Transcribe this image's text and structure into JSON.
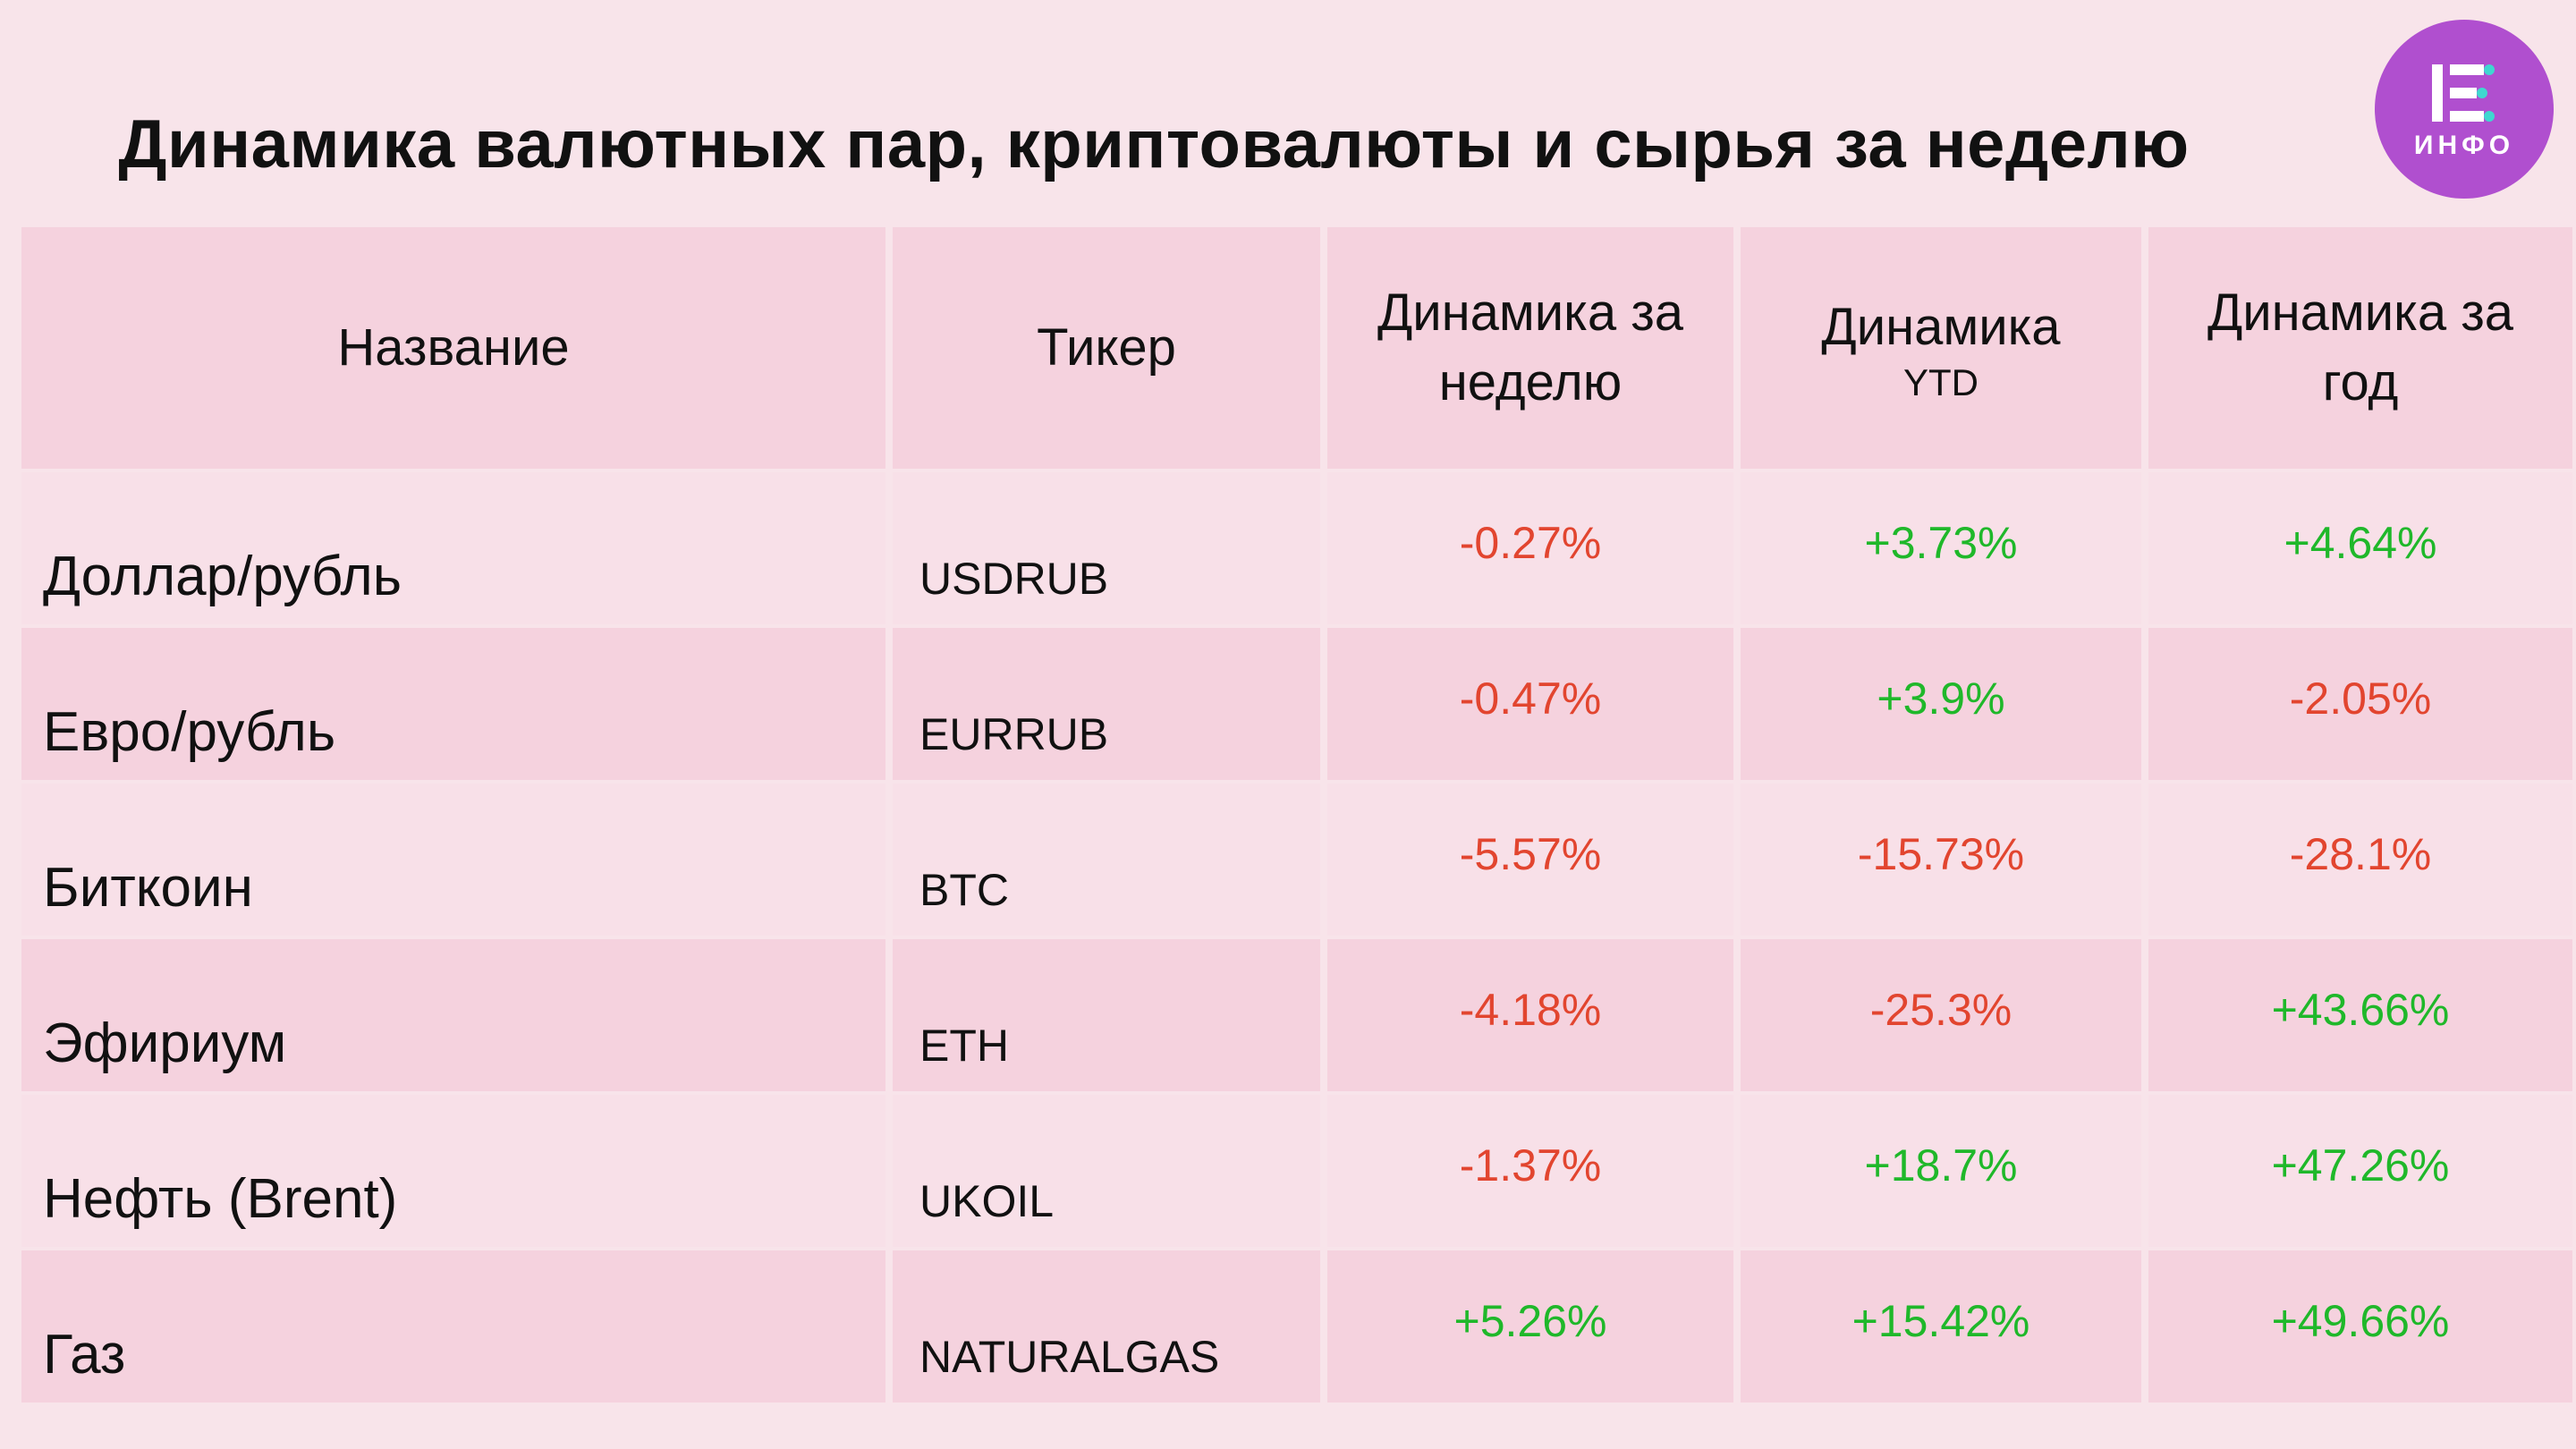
{
  "title": "Динамика валютных пар, криптовалюты и сырья за неделю",
  "logo": {
    "text": "ИНФО",
    "icon": "e-letter-icon",
    "color": "#b04fcf"
  },
  "colors": {
    "negative": "#e2452f",
    "positive": "#1fb82a",
    "background": "#f8e4ea"
  },
  "table": {
    "headers": {
      "name": "Название",
      "ticker": "Тикер",
      "week": "Динамика за неделю",
      "ytd_main": "Динамика",
      "ytd_sub": "YTD",
      "year": "Динамика за год"
    },
    "rows": [
      {
        "name": "Доллар/рубль",
        "ticker": "USDRUB",
        "week": "-0.27%",
        "ytd": "+3.73%",
        "year": "+4.64%"
      },
      {
        "name": "Евро/рубль",
        "ticker": "EURRUB",
        "week": "-0.47%",
        "ytd": "+3.9%",
        "year": "-2.05%"
      },
      {
        "name": "Биткоин",
        "ticker": "BTC",
        "week": "-5.57%",
        "ytd": "-15.73%",
        "year": "-28.1%"
      },
      {
        "name": "Эфириум",
        "ticker": "ETH",
        "week": "-4.18%",
        "ytd": "-25.3%",
        "year": "+43.66%"
      },
      {
        "name": "Нефть (Brent)",
        "ticker": "UKOIL",
        "week": "-1.37%",
        "ytd": "+18.7%",
        "year": "+47.26%"
      },
      {
        "name": "Газ",
        "ticker": "NATURALGAS",
        "week": "+5.26%",
        "ytd": "+15.42%",
        "year": "+49.66%"
      }
    ]
  }
}
